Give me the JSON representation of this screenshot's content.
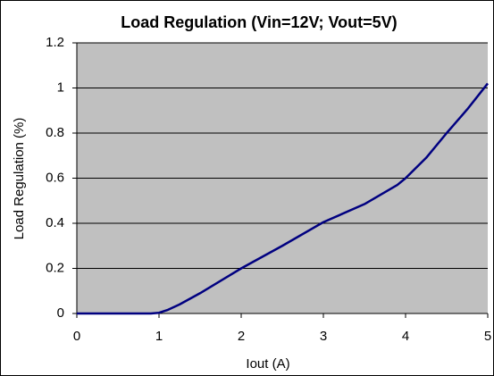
{
  "chart_data": {
    "type": "line",
    "title": "Load Regulation (Vin=12V; Vout=5V)",
    "xlabel": "Iout (A)",
    "ylabel": "Load Regulation (%)",
    "x": [
      0,
      0.5,
      0.9,
      1,
      1.1,
      1.25,
      1.5,
      2,
      2.5,
      3,
      3.5,
      3.9,
      4,
      4.25,
      4.5,
      4.75,
      5
    ],
    "series": [
      {
        "name": "Load Regulation",
        "color": "#000080",
        "values": [
          0,
          0,
          0,
          0.003,
          0.015,
          0.04,
          0.09,
          0.2,
          0.3,
          0.405,
          0.485,
          0.57,
          0.6,
          0.69,
          0.8,
          0.905,
          1.02
        ]
      }
    ],
    "xlim": [
      0,
      5
    ],
    "xticks": [
      0,
      1,
      2,
      3,
      4,
      5
    ],
    "ylim": [
      0,
      1.2
    ],
    "yticks": [
      0,
      0.2,
      0.4,
      0.6,
      0.8,
      1,
      1.2
    ],
    "grid": true,
    "plot_background": "#c0c0c0"
  }
}
